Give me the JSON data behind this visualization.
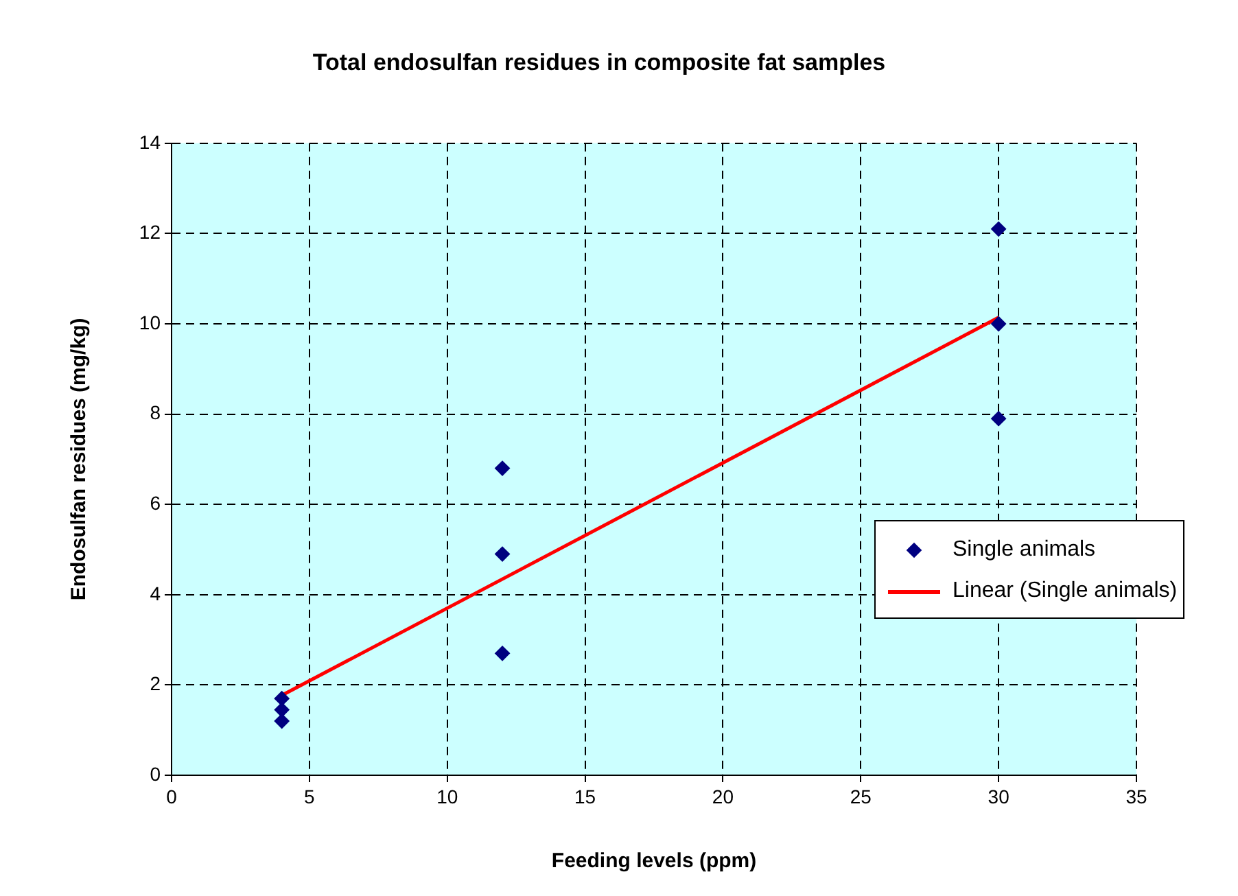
{
  "chart_data": {
    "type": "scatter",
    "title": "Total endosulfan residues in composite fat samples",
    "xlabel": "Feeding levels (ppm)",
    "ylabel": "Endosulfan residues (mg/kg)",
    "xlim": [
      0,
      35
    ],
    "xticks": [
      0,
      5,
      10,
      15,
      20,
      25,
      30,
      35
    ],
    "ylim": [
      0,
      14
    ],
    "yticks": [
      0,
      2,
      4,
      6,
      8,
      10,
      12,
      14
    ],
    "grid": true,
    "legend": "right",
    "series": [
      {
        "name": "Single animals",
        "color": "#000080",
        "marker": "diamond",
        "x": [
          4,
          4,
          4,
          12,
          12,
          12,
          30,
          30,
          30
        ],
        "values": [
          1.7,
          1.45,
          1.2,
          6.8,
          4.9,
          2.7,
          12.1,
          10.0,
          7.9
        ]
      },
      {
        "name": "Linear (Single animals)",
        "type": "line",
        "color": "#ff0000",
        "marker": "none",
        "x": [
          4,
          30
        ],
        "values": [
          1.77,
          10.14
        ]
      }
    ]
  }
}
